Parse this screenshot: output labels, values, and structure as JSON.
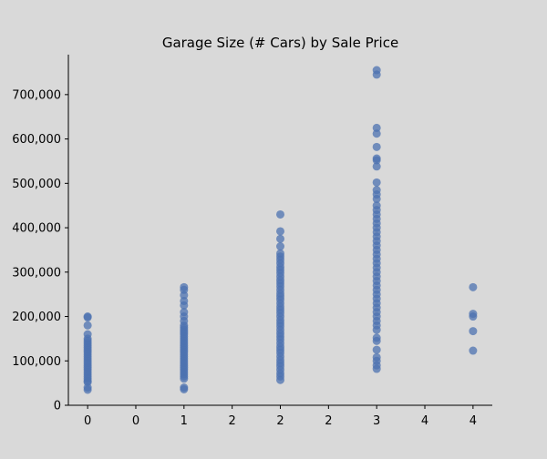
{
  "chart_data": {
    "type": "scatter",
    "title": "Garage Size (# Cars) by Sale Price",
    "xlabel": "",
    "ylabel": "",
    "xlim": [
      -0.2,
      4.2
    ],
    "ylim": [
      0,
      790000
    ],
    "x_ticks": [
      0,
      0.5,
      1,
      1.5,
      2,
      2.5,
      3,
      3.5,
      4
    ],
    "x_tick_labels": [
      "0",
      "0",
      "1",
      "2",
      "2",
      "2",
      "3",
      "4",
      "4"
    ],
    "y_ticks": [
      0,
      100000,
      200000,
      300000,
      400000,
      500000,
      600000,
      700000
    ],
    "y_tick_labels": [
      "0",
      "100,000",
      "200,000",
      "300,000",
      "400,000",
      "500,000",
      "600,000",
      "700,000"
    ],
    "grid": false,
    "marker_color": "#4c72b0",
    "series": [
      {
        "x": 0,
        "values": [
          200000,
          198000,
          180000,
          160000,
          150000,
          145000,
          140000,
          135000,
          130000,
          125000,
          120000,
          115000,
          110000,
          105000,
          100000,
          95000,
          90000,
          85000,
          80000,
          75000,
          70000,
          65000,
          60000,
          55000,
          52000,
          40000,
          35000
        ]
      },
      {
        "x": 1,
        "values": [
          266000,
          260000,
          248000,
          235000,
          225000,
          210000,
          200000,
          190000,
          180000,
          175000,
          170000,
          165000,
          160000,
          155000,
          150000,
          145000,
          140000,
          135000,
          130000,
          125000,
          120000,
          115000,
          110000,
          105000,
          100000,
          95000,
          90000,
          85000,
          80000,
          75000,
          70000,
          65000,
          60000,
          40000,
          36000
        ]
      },
      {
        "x": 2,
        "values": [
          430000,
          392000,
          375000,
          358000,
          342000,
          335000,
          328000,
          320000,
          312000,
          305000,
          298000,
          290000,
          282000,
          275000,
          268000,
          260000,
          252000,
          245000,
          238000,
          230000,
          222000,
          215000,
          208000,
          200000,
          192000,
          185000,
          178000,
          170000,
          162000,
          155000,
          148000,
          140000,
          132000,
          125000,
          118000,
          110000,
          102000,
          95000,
          88000,
          80000,
          72000,
          65000,
          57000
        ]
      },
      {
        "x": 3,
        "values": [
          755000,
          745000,
          625000,
          612000,
          582000,
          556000,
          552000,
          538000,
          502000,
          485000,
          475000,
          465000,
          450000,
          440000,
          430000,
          420000,
          410000,
          400000,
          390000,
          380000,
          370000,
          360000,
          350000,
          340000,
          330000,
          320000,
          310000,
          300000,
          290000,
          280000,
          270000,
          260000,
          250000,
          240000,
          230000,
          220000,
          210000,
          200000,
          190000,
          180000,
          170000,
          152000,
          145000,
          125000,
          108000,
          100000,
          90000,
          82000
        ]
      },
      {
        "x": 4,
        "values": [
          266000,
          206000,
          200000,
          167000,
          123000
        ]
      }
    ]
  }
}
